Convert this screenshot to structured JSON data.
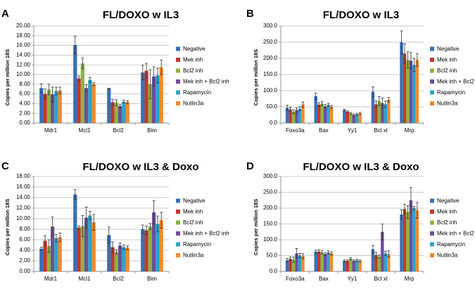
{
  "colors": {
    "series": [
      "#3a6fb7",
      "#c0392b",
      "#8db33f",
      "#6f4e9b",
      "#2ea3c9",
      "#ee8a2f"
    ],
    "grid": "#b9b9b9",
    "axis": "#8a8a8a",
    "error": "#333333"
  },
  "chart_data": [
    {
      "panel": "A",
      "type": "bar",
      "title": "FL/DOXO w IL3",
      "ylabel": "Copies per million 18S",
      "ylim": [
        0,
        20
      ],
      "ystep": 2,
      "decimals": 2,
      "categories": [
        "Mdr1",
        "Mcl1",
        "Bcl2",
        "Bim"
      ],
      "series": [
        {
          "name": "Negative",
          "values": [
            7.2,
            16.1,
            7.1,
            10.4
          ],
          "errors": [
            0.9,
            1.8,
            0.1,
            1.5
          ]
        },
        {
          "name": "Mek inh",
          "values": [
            6.0,
            9.2,
            4.3,
            10.8
          ],
          "errors": [
            1.0,
            0.5,
            0.6,
            1.5
          ]
        },
        {
          "name": "Bcl2 inh",
          "values": [
            6.9,
            12.3,
            4.2,
            8.0
          ],
          "errors": [
            1.1,
            1.1,
            0.6,
            3.0
          ]
        },
        {
          "name": "Mek inh + Bcl2 inh",
          "values": [
            5.9,
            7.2,
            3.5,
            9.6
          ],
          "errors": [
            1.5,
            0.7,
            0.3,
            2.0
          ]
        },
        {
          "name": "Rapamycin",
          "values": [
            6.6,
            8.9,
            4.4,
            9.8
          ],
          "errors": [
            0.8,
            0.5,
            0.3,
            1.5
          ]
        },
        {
          "name": "Nutlin3a",
          "values": [
            6.7,
            8.0,
            4.3,
            11.5
          ],
          "errors": [
            0.7,
            0.3,
            0.3,
            1.5
          ]
        }
      ]
    },
    {
      "panel": "B",
      "type": "bar",
      "title": "FL/DOXO w IL3",
      "ylabel": "Copies per million 18S",
      "ylim": [
        0,
        300
      ],
      "ystep": 50,
      "decimals": 1,
      "categories": [
        "Foxo3a",
        "Bax",
        "Yy1",
        "Bcl xl",
        "Mrp"
      ],
      "series": [
        {
          "name": "Negative",
          "values": [
            47,
            83,
            40,
            97,
            250
          ],
          "errors": [
            8,
            10,
            3,
            15,
            35
          ]
        },
        {
          "name": "Mek inh",
          "values": [
            42,
            57,
            35,
            58,
            215
          ],
          "errors": [
            7,
            6,
            3,
            10,
            30
          ]
        },
        {
          "name": "Bcl2 inh",
          "values": [
            35,
            60,
            30,
            68,
            195
          ],
          "errors": [
            6,
            6,
            3,
            14,
            25
          ]
        },
        {
          "name": "Mek inh + Bcl2 inh",
          "values": [
            40,
            52,
            25,
            62,
            193
          ],
          "errors": [
            7,
            5,
            3,
            15,
            25
          ]
        },
        {
          "name": "Rapamycin",
          "values": [
            44,
            56,
            27,
            58,
            180
          ],
          "errors": [
            6,
            5,
            3,
            10,
            20
          ]
        },
        {
          "name": "Nutlin3a",
          "values": [
            57,
            50,
            30,
            72,
            195
          ],
          "errors": [
            8,
            4,
            3,
            7,
            20
          ]
        }
      ]
    },
    {
      "panel": "C",
      "type": "bar",
      "title": "FL/DOXO w IL3 & Doxo",
      "ylabel": "Copies per million 18S",
      "ylim": [
        0,
        18
      ],
      "ystep": 2,
      "decimals": 2,
      "categories": [
        "Mdr1",
        "Mcl1",
        "Bcl2",
        "Bim"
      ],
      "series": [
        {
          "name": "Negative",
          "values": [
            4.3,
            14.6,
            6.9,
            8.0
          ],
          "errors": [
            0.3,
            0.9,
            1.5,
            0.8
          ]
        },
        {
          "name": "Mek inh",
          "values": [
            5.8,
            8.3,
            4.6,
            7.8
          ],
          "errors": [
            1.0,
            0.3,
            1.0,
            0.8
          ]
        },
        {
          "name": "Bcl2 inh",
          "values": [
            4.8,
            8.6,
            3.7,
            8.5
          ],
          "errors": [
            1.2,
            2.0,
            0.4,
            0.6
          ]
        },
        {
          "name": "Mek inh + Bcl2 inh",
          "values": [
            8.5,
            10.2,
            4.9,
            11.2
          ],
          "errors": [
            1.8,
            2.0,
            0.5,
            2.2
          ]
        },
        {
          "name": "Rapamycin",
          "values": [
            6.3,
            10.6,
            4.6,
            9.0
          ],
          "errors": [
            0.7,
            0.8,
            0.4,
            1.5
          ]
        },
        {
          "name": "Nutlin3a",
          "values": [
            6.5,
            9.3,
            4.5,
            9.7
          ],
          "errors": [
            0.8,
            1.5,
            0.4,
            1.5
          ]
        }
      ]
    },
    {
      "panel": "D",
      "type": "bar",
      "title": "FL/DOXO w IL3 & Doxo",
      "ylabel": "Copies per million 18S",
      "ylim": [
        0,
        300
      ],
      "ystep": 50,
      "decimals": 1,
      "categories": [
        "Foxo3a",
        "Bax",
        "Yy1",
        "Bcl xl",
        "Mrp"
      ],
      "series": [
        {
          "name": "Negative",
          "values": [
            35,
            62,
            33,
            70,
            180
          ],
          "errors": [
            6,
            5,
            3,
            12,
            15
          ]
        },
        {
          "name": "Mek inh",
          "values": [
            40,
            63,
            33,
            52,
            197
          ],
          "errors": [
            6,
            5,
            3,
            8,
            15
          ]
        },
        {
          "name": "Bcl2 inh",
          "values": [
            37,
            60,
            40,
            47,
            188
          ],
          "errors": [
            8,
            5,
            4,
            5,
            20
          ]
        },
        {
          "name": "Mek inh + Bcl2 inh",
          "values": [
            57,
            55,
            33,
            125,
            225
          ],
          "errors": [
            15,
            5,
            3,
            25,
            40
          ]
        },
        {
          "name": "Rapamycin",
          "values": [
            50,
            60,
            35,
            57,
            200
          ],
          "errors": [
            7,
            5,
            3,
            7,
            5
          ]
        },
        {
          "name": "Nutlin3a",
          "values": [
            48,
            57,
            33,
            55,
            193
          ],
          "errors": [
            8,
            5,
            3,
            10,
            25
          ]
        }
      ]
    }
  ]
}
